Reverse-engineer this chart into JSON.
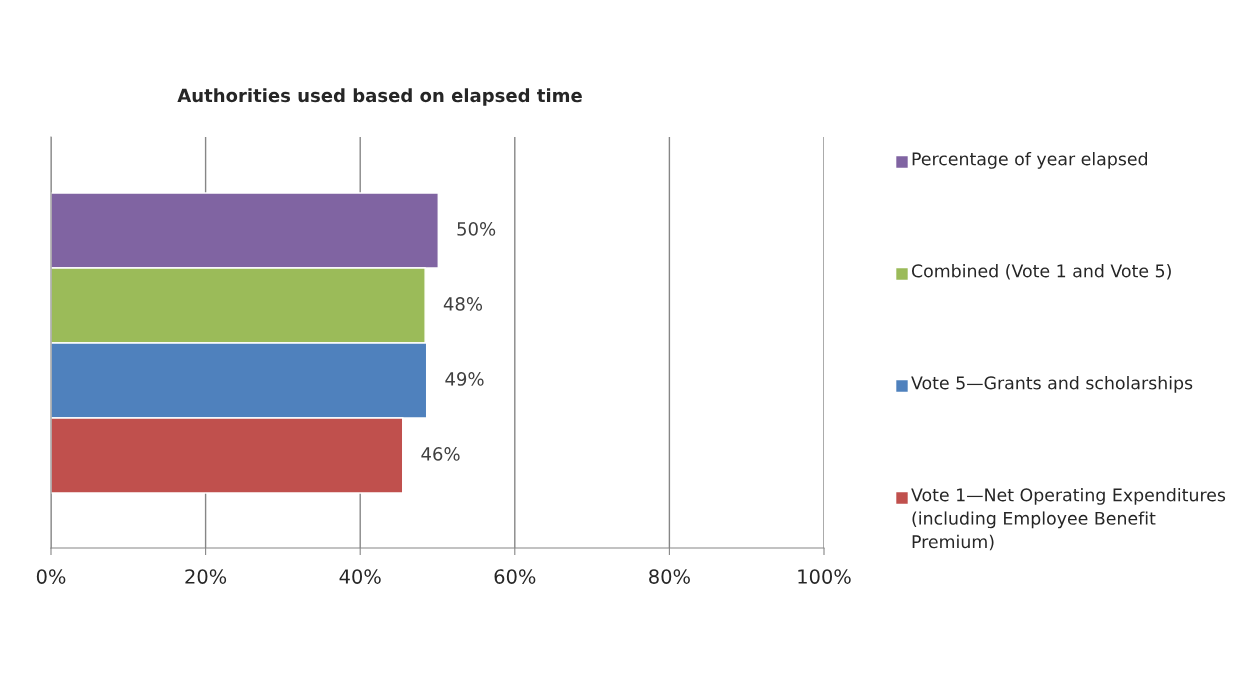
{
  "chart_data": {
    "type": "bar",
    "orientation": "horizontal",
    "title": "Authorities used based on elapsed time",
    "categories": [
      null
    ],
    "series": [
      {
        "name": "Percentage of year elapsed",
        "color": "#8064a2",
        "values": [
          50.1
        ],
        "value_labels": [
          "50%"
        ]
      },
      {
        "name": "Combined (Vote 1 and Vote 5)",
        "color": "#9bbb59",
        "values": [
          48.4
        ],
        "value_labels": [
          "48%"
        ]
      },
      {
        "name": "Vote 5—Grants and scholarships",
        "color": "#4f81bd",
        "values": [
          48.6
        ],
        "value_labels": [
          "49%"
        ]
      },
      {
        "name": "Vote 1—Net Operating Expenditures (including Employee Benefit Premium)",
        "color": "#c0504d",
        "values": [
          45.5
        ],
        "value_labels": [
          "46%"
        ]
      }
    ],
    "xlim": [
      0,
      100
    ],
    "xticks": [
      {
        "value": 0,
        "label": "0%"
      },
      {
        "value": 20,
        "label": "20%"
      },
      {
        "value": 40,
        "label": "40%"
      },
      {
        "value": 60,
        "label": "60%"
      },
      {
        "value": 80,
        "label": "80%"
      },
      {
        "value": 100,
        "label": "100%"
      }
    ],
    "grid": "x",
    "legend": "right",
    "tick_labels": "x"
  }
}
